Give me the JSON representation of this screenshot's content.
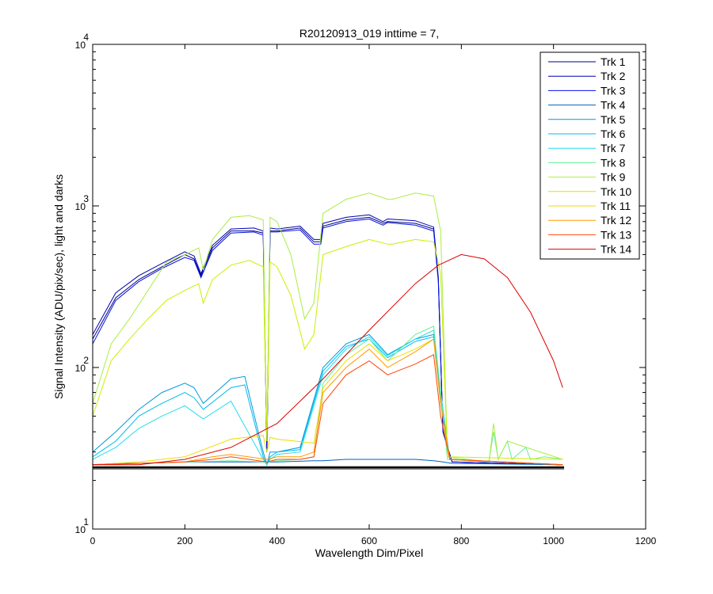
{
  "chart_data": {
    "type": "line",
    "title": "R20120913_019 inttime = 7,",
    "xlabel": "Wavelength Dim/Pixel",
    "ylabel": "Signal Intensity (ADU/pix/sec), light and darks",
    "xlim": [
      0,
      1200
    ],
    "ylim": [
      10,
      10000
    ],
    "yscale": "log",
    "grid": false,
    "legend_placement": "top-right",
    "xticks": [
      0,
      200,
      400,
      600,
      800,
      1000,
      1200
    ],
    "yticks": [
      {
        "value": 10,
        "base": "10",
        "exp": "1"
      },
      {
        "value": 100,
        "base": "10",
        "exp": "2"
      },
      {
        "value": 1000,
        "base": "10",
        "exp": "3"
      },
      {
        "value": 10000,
        "base": "10",
        "exp": "4"
      }
    ],
    "series": [
      {
        "name": "Trk 1",
        "color": "#00007f",
        "x": [
          0,
          50,
          100,
          150,
          200,
          220,
          235,
          260,
          300,
          350,
          370,
          378,
          385,
          400,
          450,
          480,
          495,
          500,
          550,
          600,
          630,
          640,
          700,
          740,
          750,
          760,
          780,
          1020
        ],
        "y": [
          150,
          270,
          350,
          420,
          500,
          470,
          370,
          550,
          700,
          700,
          680,
          30,
          700,
          700,
          730,
          600,
          600,
          750,
          820,
          850,
          780,
          800,
          780,
          720,
          350,
          40,
          26,
          25
        ]
      },
      {
        "name": "Trk 2",
        "color": "#0000b2",
        "x": [
          0,
          50,
          100,
          150,
          200,
          220,
          235,
          260,
          300,
          350,
          370,
          378,
          385,
          400,
          450,
          480,
          495,
          500,
          550,
          600,
          630,
          640,
          700,
          740,
          750,
          760,
          780,
          1020
        ],
        "y": [
          160,
          290,
          370,
          440,
          520,
          490,
          380,
          570,
          720,
          730,
          700,
          30,
          730,
          720,
          750,
          620,
          620,
          780,
          850,
          880,
          800,
          830,
          810,
          740,
          360,
          40,
          26,
          25
        ]
      },
      {
        "name": "Trk 3",
        "color": "#0010e6",
        "x": [
          0,
          50,
          100,
          150,
          200,
          220,
          235,
          260,
          300,
          350,
          370,
          378,
          385,
          400,
          450,
          480,
          495,
          500,
          550,
          600,
          630,
          640,
          700,
          740,
          750,
          760,
          780,
          1020
        ],
        "y": [
          140,
          260,
          340,
          410,
          480,
          460,
          360,
          530,
          680,
          690,
          660,
          30,
          690,
          690,
          710,
          580,
          580,
          730,
          800,
          830,
          760,
          790,
          760,
          700,
          340,
          40,
          26,
          25
        ]
      },
      {
        "name": "Trk 4",
        "color": "#0060c0",
        "x": [
          0,
          50,
          100,
          200,
          300,
          378,
          400,
          480,
          500,
          550,
          600,
          650,
          700,
          740,
          760,
          780,
          1020
        ],
        "y": [
          25,
          25.5,
          25.5,
          26,
          26,
          26,
          26,
          26.5,
          26.5,
          27,
          27,
          27,
          27,
          26.5,
          26,
          25.5,
          25
        ]
      },
      {
        "name": "Trk 5",
        "color": "#0099dd",
        "x": [
          0,
          50,
          100,
          150,
          200,
          220,
          240,
          300,
          330,
          370,
          378,
          385,
          400,
          450,
          500,
          550,
          600,
          640,
          700,
          740,
          755,
          775,
          1020
        ],
        "y": [
          30,
          40,
          55,
          70,
          80,
          75,
          60,
          85,
          88,
          30,
          25,
          30,
          30,
          32,
          100,
          140,
          160,
          120,
          150,
          160,
          70,
          27,
          25
        ]
      },
      {
        "name": "Trk 6",
        "color": "#00bbee",
        "x": [
          0,
          50,
          100,
          150,
          200,
          220,
          240,
          300,
          330,
          370,
          378,
          385,
          400,
          450,
          500,
          550,
          600,
          640,
          700,
          740,
          755,
          775,
          1020
        ],
        "y": [
          28,
          35,
          50,
          60,
          70,
          65,
          55,
          75,
          78,
          28,
          25,
          28,
          30,
          31,
          95,
          135,
          150,
          115,
          145,
          155,
          65,
          27,
          25
        ]
      },
      {
        "name": "Trk 7",
        "color": "#22ddee",
        "x": [
          0,
          50,
          100,
          150,
          200,
          240,
          300,
          370,
          378,
          385,
          400,
          450,
          500,
          550,
          600,
          640,
          700,
          740,
          755,
          775,
          1020
        ],
        "y": [
          27,
          32,
          42,
          50,
          58,
          48,
          62,
          27,
          25,
          27,
          29,
          30,
          90,
          130,
          155,
          118,
          150,
          170,
          70,
          27,
          25
        ]
      },
      {
        "name": "Trk 8",
        "color": "#66ee99",
        "x": [
          0,
          100,
          200,
          300,
          378,
          400,
          450,
          480,
          500,
          550,
          600,
          640,
          700,
          740,
          755,
          770,
          860,
          870,
          880,
          900,
          910,
          940,
          950,
          980,
          1020
        ],
        "y": [
          25,
          25.5,
          26,
          26.5,
          26,
          26.5,
          27,
          28,
          80,
          120,
          150,
          110,
          160,
          180,
          70,
          27,
          26,
          40,
          27,
          35,
          27,
          32,
          27,
          28,
          27
        ]
      },
      {
        "name": "Trk 9",
        "color": "#aaee44",
        "x": [
          0,
          40,
          80,
          120,
          160,
          200,
          230,
          240,
          260,
          300,
          340,
          370,
          378,
          385,
          400,
          430,
          460,
          480,
          500,
          550,
          600,
          640,
          650,
          700,
          740,
          755,
          770,
          860,
          870,
          880,
          900,
          1020
        ],
        "y": [
          60,
          140,
          200,
          300,
          450,
          500,
          550,
          400,
          620,
          850,
          870,
          820,
          35,
          850,
          800,
          500,
          200,
          250,
          900,
          1100,
          1200,
          1100,
          1100,
          1200,
          1150,
          700,
          28,
          26,
          45,
          27,
          35,
          27
        ]
      },
      {
        "name": "Trk 10",
        "color": "#ccee00",
        "x": [
          0,
          40,
          80,
          120,
          160,
          200,
          230,
          240,
          260,
          300,
          340,
          370,
          378,
          385,
          400,
          430,
          460,
          480,
          500,
          550,
          600,
          640,
          650,
          700,
          740,
          755,
          770,
          1020
        ],
        "y": [
          50,
          110,
          150,
          200,
          260,
          300,
          330,
          250,
          350,
          430,
          460,
          420,
          35,
          450,
          420,
          280,
          130,
          160,
          500,
          560,
          620,
          580,
          580,
          620,
          600,
          380,
          28,
          27
        ]
      },
      {
        "name": "Trk 11",
        "color": "#eedd00",
        "x": [
          0,
          100,
          200,
          300,
          370,
          378,
          385,
          400,
          480,
          500,
          550,
          600,
          640,
          700,
          740,
          755,
          775,
          1020
        ],
        "y": [
          25,
          26,
          28,
          36,
          38,
          30,
          37,
          36,
          34,
          75,
          110,
          140,
          110,
          130,
          150,
          60,
          27,
          25
        ]
      },
      {
        "name": "Trk 12",
        "color": "#ff9900",
        "x": [
          0,
          200,
          260,
          300,
          378,
          400,
          450,
          480,
          500,
          550,
          600,
          640,
          700,
          740,
          755,
          775,
          1020
        ],
        "y": [
          25,
          26,
          28,
          29,
          27,
          28,
          28,
          30,
          70,
          100,
          130,
          100,
          125,
          150,
          60,
          27,
          25
        ]
      },
      {
        "name": "Trk 13",
        "color": "#ff4400",
        "x": [
          0,
          200,
          260,
          300,
          378,
          400,
          450,
          480,
          500,
          550,
          600,
          640,
          700,
          740,
          755,
          775,
          1020
        ],
        "y": [
          25,
          26,
          27,
          28,
          26,
          27,
          27,
          28,
          60,
          90,
          110,
          90,
          105,
          120,
          50,
          27,
          25
        ]
      },
      {
        "name": "Trk 14",
        "color": "#dd0000",
        "x": [
          0,
          100,
          200,
          300,
          400,
          500,
          600,
          700,
          750,
          800,
          850,
          900,
          950,
          1000,
          1020
        ],
        "y": [
          25,
          25,
          27,
          32,
          45,
          85,
          170,
          330,
          430,
          500,
          470,
          360,
          220,
          110,
          75
        ]
      }
    ]
  }
}
